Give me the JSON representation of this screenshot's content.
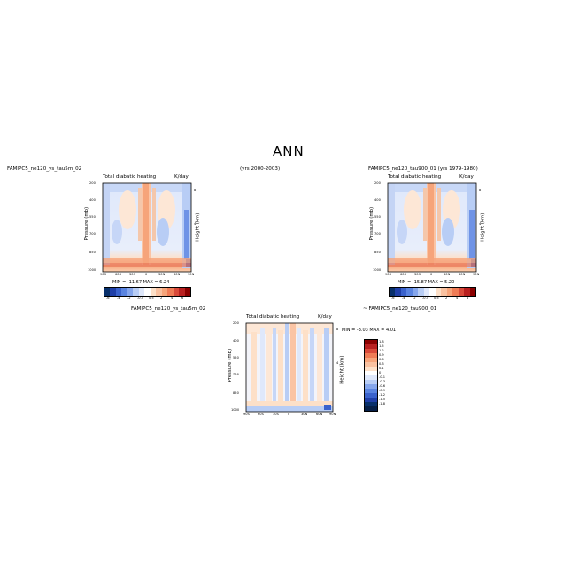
{
  "page_title": "ANN",
  "cases": {
    "left_case": "FAMIPC5_ne120_ys_tau5m_02",
    "left_years": "(yrs 2000-2003)",
    "right_case": "FAMIPC5_ne120_tau900_01 (yrs 1979-1980)",
    "diff_case_a": "FAMIPC5_ne120_ys_tau5m_02",
    "diff_case_b": "~ FAMIPC5_ne120_tau900_01"
  },
  "colors": {
    "deep_blue": "#08306b",
    "blue": "#3a62cc",
    "mid_blue": "#6f93e6",
    "light_blue": "#b8cdf5",
    "pale_blue": "#dfe8fb",
    "pale_orange": "#fde0c8",
    "orange": "#f6a47a",
    "red": "#d94a3a",
    "dark_red": "#8b0000"
  },
  "chart_data": [
    {
      "type": "heatmap",
      "panel": "left",
      "title": "Total diabatic heating",
      "units": "K/day",
      "ylabel": "Pressure (mb)",
      "ylabel_right": "Height (km)",
      "x_ticks": [
        "90S",
        "60S",
        "30S",
        "0",
        "30N",
        "60N",
        "90N"
      ],
      "y_ticks": [
        "200",
        "400",
        "550",
        "700",
        "850",
        "1000"
      ],
      "y_ticks_right": [
        "8",
        "4"
      ],
      "stats": "MIN = -11.67   MAX =   6.24",
      "colorbar_labels": [
        "-6",
        "-4",
        "-2",
        "-0.5",
        "0.5",
        "2",
        "4",
        "6"
      ]
    },
    {
      "type": "heatmap",
      "panel": "right",
      "title": "Total diabatic heating",
      "units": "K/day",
      "ylabel": "Pressure (mb)",
      "ylabel_right": "Height (km)",
      "x_ticks": [
        "90S",
        "60S",
        "30S",
        "0",
        "30N",
        "60N",
        "90N"
      ],
      "y_ticks": [
        "200",
        "400",
        "550",
        "700",
        "850",
        "1000"
      ],
      "y_ticks_right": [
        "8",
        "4"
      ],
      "stats": "MIN = -15.87   MAX =   5.20",
      "colorbar_labels": [
        "-6",
        "-4",
        "-2",
        "-0.5",
        "0.5",
        "2",
        "4",
        "6"
      ]
    },
    {
      "type": "heatmap",
      "panel": "difference",
      "title": "Total diabatic heating",
      "units": "K/day",
      "ylabel": "Pressure (mb)",
      "ylabel_right": "Height (km)",
      "x_ticks": [
        "90S",
        "60S",
        "30S",
        "0",
        "30N",
        "60N",
        "90N"
      ],
      "y_ticks": [
        "200",
        "400",
        "550",
        "700",
        "850",
        "1000"
      ],
      "y_ticks_right": [
        "8",
        "4"
      ],
      "stats": "MIN =  -3.03   MAX =   4.01",
      "colorbar_labels": [
        "1.8",
        "1.5",
        "1.2",
        "0.9",
        "0.6",
        "0.3",
        "0.1",
        "0",
        "-0.1",
        "-0.3",
        "-0.6",
        "-0.9",
        "-1.2",
        "-1.5",
        "-1.8"
      ]
    }
  ]
}
